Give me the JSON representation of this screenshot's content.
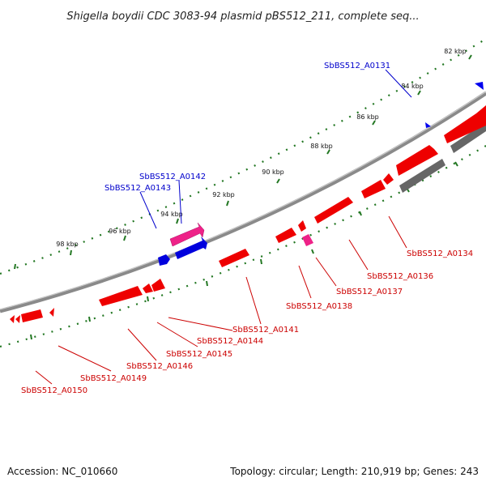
{
  "title": "Shigella boydii CDC 3083-94 plasmid pBS512_211, complete seq...",
  "footer": {
    "accession": "Accession: NC_010660",
    "summary": "Topology: circular; Length: 210,919 bp; Genes: 243"
  },
  "scale_labels": [
    "82 kbp",
    "84 kbp",
    "86 kbp",
    "88 kbp",
    "90 kbp",
    "92 kbp",
    "94 kbp",
    "96 kbp",
    "98 kbp"
  ],
  "gene_labels": {
    "forward": [
      "SbBS512_A0131",
      "SbBS512_A0142",
      "SbBS512_A0143"
    ],
    "reverse": [
      "SbBS512_A0134",
      "SbBS512_A0136",
      "SbBS512_A0137",
      "SbBS512_A0138",
      "SbBS512_A0141",
      "SbBS512_A0144",
      "SbBS512_A0145",
      "SbBS512_A0146",
      "SbBS512_A0149",
      "SbBS512_A0150"
    ]
  },
  "colors": {
    "forward_gene": "#0000ee",
    "reverse_gene": "#ee0000",
    "highlight_gene": "#ee2288",
    "other_gene": "#666666",
    "backbone": "#888888",
    "tick": "#227722"
  }
}
